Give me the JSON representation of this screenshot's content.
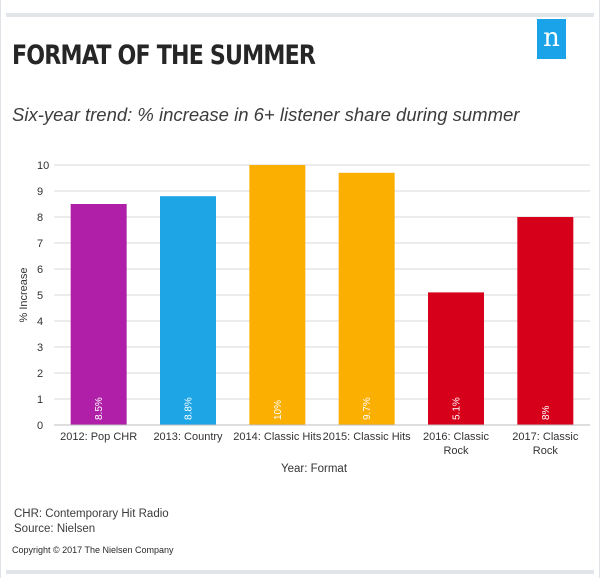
{
  "brand": {
    "logo_letter": "n",
    "logo_color": "#1aa3e8"
  },
  "header": {
    "title": "FORMAT OF THE SUMMER",
    "subtitle": "Six-year trend: % increase in 6+ listener share during summer"
  },
  "chart_data": {
    "type": "bar",
    "categories": [
      [
        "2012: Pop CHR"
      ],
      [
        "2013: Country"
      ],
      [
        "2014: Classic Hits"
      ],
      [
        "2015: Classic Hits"
      ],
      [
        "2016: Classic",
        "Rock"
      ],
      [
        "2017: Classic",
        "Rock"
      ]
    ],
    "values": [
      8.5,
      8.8,
      10,
      9.7,
      5.1,
      8
    ],
    "value_labels": [
      "8.5%",
      "8.8%",
      "10%",
      "9.7%",
      "5.1%",
      "8%"
    ],
    "colors": [
      "#b01fa8",
      "#1da5e6",
      "#fbaf00",
      "#fbaf00",
      "#d7001a",
      "#d7001a"
    ],
    "xlabel": "Year: Format",
    "ylabel": "% Increase",
    "ylim": [
      0,
      10
    ],
    "yticks": [
      "0",
      "1",
      "2",
      "3",
      "4",
      "5",
      "6",
      "7",
      "8",
      "9",
      "10"
    ],
    "grid": true,
    "legend": "none"
  },
  "footer": {
    "note1": "CHR: Contemporary Hit Radio",
    "note2": "Source: Nielsen",
    "copyright": "Copyright © 2017 The Nielsen Company"
  }
}
